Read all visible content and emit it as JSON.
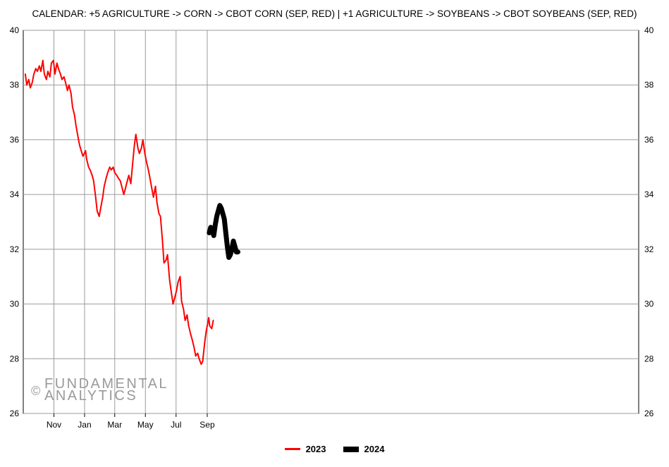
{
  "chart_data": {
    "type": "line",
    "title": "CALENDAR: +5 AGRICULTURE -> CORN -> CBOT CORN (SEP, RED) | +1 AGRICULTURE -> SOYBEANS -> CBOT SOYBEANS (SEP, RED)",
    "xlabel": "",
    "ylabel": "",
    "ylim": [
      26,
      40
    ],
    "yticks": [
      "26",
      "28",
      "30",
      "32",
      "34",
      "36",
      "38",
      "40"
    ],
    "xticks": [
      "Nov",
      "Jan",
      "Mar",
      "May",
      "Jul",
      "Sep"
    ],
    "grid": true,
    "legend_position": "bottom",
    "series": [
      {
        "name": "2023",
        "color": "#ff0000",
        "x": [
          "2023-09-05",
          "2023-09-08",
          "2023-09-12",
          "2023-09-15",
          "2023-09-19",
          "2023-09-22",
          "2023-09-26",
          "2023-09-29",
          "2023-10-03",
          "2023-10-06",
          "2023-10-10",
          "2023-10-13",
          "2023-10-17",
          "2023-10-20",
          "2023-10-24",
          "2023-10-27",
          "2023-10-31",
          "2023-11-03",
          "2023-11-07",
          "2023-11-10",
          "2023-11-14",
          "2023-11-17",
          "2023-11-21",
          "2023-11-24",
          "2023-11-28",
          "2023-12-01",
          "2023-12-05",
          "2023-12-08",
          "2023-12-12",
          "2023-12-15",
          "2023-12-19",
          "2023-12-22",
          "2023-12-27",
          "2023-12-29",
          "2024-01-03",
          "2024-01-05",
          "2024-01-09",
          "2024-01-12",
          "2024-01-16",
          "2024-01-19",
          "2024-01-23",
          "2024-01-26",
          "2024-01-30",
          "2024-02-02",
          "2024-02-06",
          "2024-02-09",
          "2024-02-13",
          "2024-02-16",
          "2024-02-20",
          "2024-02-23",
          "2024-02-27",
          "2024-03-01",
          "2024-03-05",
          "2024-03-08",
          "2024-03-12",
          "2024-03-15",
          "2024-03-19",
          "2024-03-22",
          "2024-03-26",
          "2024-03-29",
          "2024-04-02",
          "2024-04-05",
          "2024-04-09",
          "2024-04-12",
          "2024-04-16",
          "2024-04-19",
          "2024-04-23",
          "2024-04-26",
          "2024-04-30",
          "2024-05-03",
          "2024-05-07",
          "2024-05-10",
          "2024-05-14",
          "2024-05-17",
          "2024-05-21",
          "2024-05-24",
          "2024-05-28",
          "2024-05-31",
          "2024-06-04",
          "2024-06-07",
          "2024-06-11",
          "2024-06-14",
          "2024-06-18",
          "2024-06-21",
          "2024-06-25",
          "2024-06-28",
          "2024-07-02",
          "2024-07-05",
          "2024-07-09",
          "2024-07-12",
          "2024-07-16",
          "2024-07-19",
          "2024-07-23",
          "2024-07-26",
          "2024-07-30",
          "2024-08-02",
          "2024-08-06",
          "2024-08-09",
          "2024-08-13",
          "2024-08-16",
          "2024-08-20",
          "2024-08-23",
          "2024-08-27",
          "2024-08-30",
          "2024-09-04",
          "2024-09-06",
          "2024-09-10",
          "2024-09-13"
        ],
        "values": [
          38.4,
          38.0,
          38.2,
          37.9,
          38.1,
          38.4,
          38.6,
          38.5,
          38.7,
          38.5,
          38.9,
          38.4,
          38.2,
          38.5,
          38.3,
          38.8,
          38.9,
          38.4,
          38.8,
          38.6,
          38.4,
          38.2,
          38.3,
          38.1,
          37.8,
          38.0,
          37.7,
          37.2,
          36.9,
          36.5,
          36.1,
          35.8,
          35.5,
          35.4,
          35.6,
          35.3,
          35.0,
          34.9,
          34.7,
          34.5,
          33.9,
          33.4,
          33.2,
          33.5,
          33.9,
          34.3,
          34.6,
          34.8,
          35.0,
          34.9,
          35.0,
          34.8,
          34.7,
          34.6,
          34.5,
          34.3,
          34.0,
          34.2,
          34.5,
          34.7,
          34.4,
          35.0,
          35.8,
          36.2,
          35.7,
          35.5,
          35.7,
          36.0,
          35.5,
          35.2,
          34.9,
          34.6,
          34.2,
          33.9,
          34.3,
          33.7,
          33.3,
          33.2,
          32.3,
          31.5,
          31.6,
          31.8,
          30.9,
          30.5,
          30.0,
          30.2,
          30.5,
          30.8,
          31.0,
          30.1,
          29.8,
          29.4,
          29.6,
          29.2,
          28.9,
          28.7,
          28.4,
          28.1,
          28.2,
          28.0,
          27.8,
          27.9,
          28.6,
          29.0,
          29.5,
          29.2,
          29.1,
          29.4
        ]
      },
      {
        "name": "2024",
        "color": "#000000",
        "x": [
          "2024-09-05",
          "2024-09-08",
          "2024-09-11",
          "2024-09-14",
          "2024-09-17",
          "2024-09-20",
          "2024-09-23",
          "2024-09-26",
          "2024-09-29",
          "2024-10-02",
          "2024-10-05",
          "2024-10-08",
          "2024-10-11",
          "2024-10-14",
          "2024-10-17",
          "2024-10-20",
          "2024-10-23",
          "2024-10-26",
          "2024-10-29",
          "2024-11-01"
        ],
        "values": [
          32.6,
          32.8,
          32.7,
          32.5,
          32.9,
          33.2,
          33.4,
          33.6,
          33.5,
          33.3,
          33.1,
          32.6,
          32.1,
          31.7,
          31.8,
          32.0,
          32.3,
          32.1,
          31.9,
          31.9
        ]
      }
    ]
  },
  "watermark": {
    "symbol": "©",
    "line1": "FUNDAMENTAL",
    "line2": "ANALYTICS"
  }
}
